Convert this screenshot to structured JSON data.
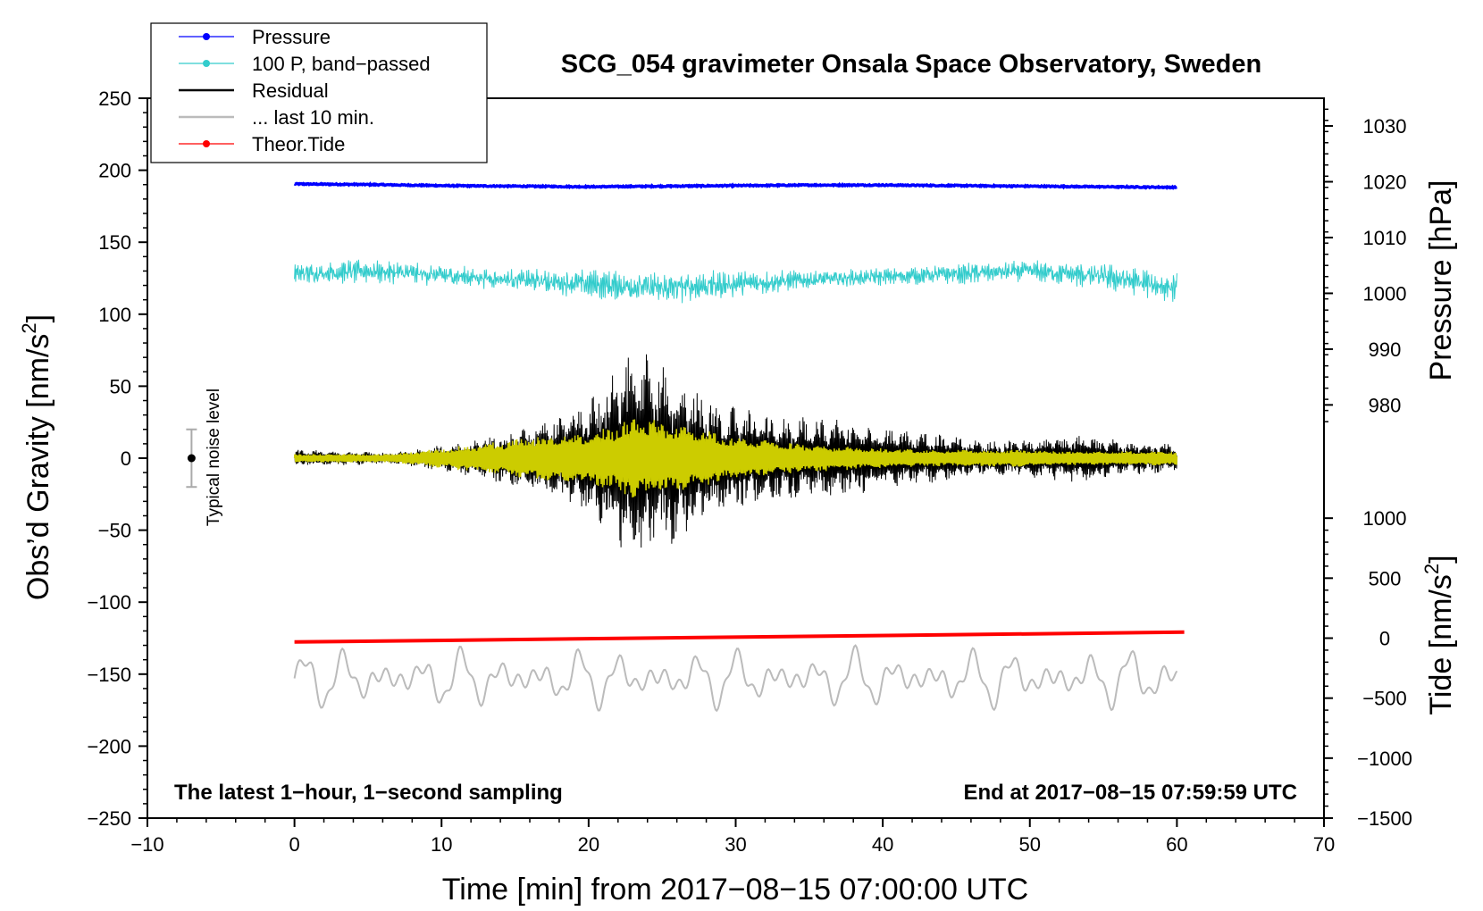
{
  "chart_data": {
    "type": "line",
    "title": "SCG_054 gravimeter Onsala Space Observatory, Sweden",
    "xlabel": "Time [min] from 2017−08−15 07:00:00 UTC",
    "ylabel_left": "Obs’d Gravity [nm/s",
    "ylabel_left_sup": "2",
    "ylabel_left_end": "]",
    "ylabel_pressure": "Pressure [hPa]",
    "ylabel_tide": "Tide [nm/s",
    "ylabel_tide_sup": "2",
    "ylabel_tide_end": "]",
    "xlim": [
      -10,
      70
    ],
    "ylim": [
      -250,
      250
    ],
    "x_ticks": [
      -10,
      0,
      10,
      20,
      30,
      40,
      50,
      60,
      70
    ],
    "x_tick_labels": [
      "−10",
      "0",
      "10",
      "20",
      "30",
      "40",
      "50",
      "60",
      "70"
    ],
    "y_ticks": [
      250,
      200,
      150,
      100,
      50,
      0,
      -50,
      -100,
      -150,
      -200,
      -250
    ],
    "y_tick_labels": [
      "250",
      "200",
      "150",
      "100",
      "50",
      "0",
      "−50",
      "−100",
      "−150",
      "−200",
      "−250"
    ],
    "pressure_axis": {
      "ticks": [
        1030,
        1020,
        1010,
        1000,
        990,
        980
      ],
      "tick_labels": [
        "1030",
        "1020",
        "1010",
        "1000",
        "990",
        "980"
      ],
      "map_to_left": {
        "p1": 1020,
        "y1": 192,
        "p2": 980,
        "y2": 37
      }
    },
    "tide_axis": {
      "ticks": [
        1000,
        500,
        0,
        -500,
        -1000,
        -1500
      ],
      "tick_labels": [
        "1000",
        "500",
        "0",
        "−500",
        "−1000",
        "−1500"
      ],
      "map_to_left": {
        "t1": 0,
        "y1": -125,
        "t2": -1500,
        "y2": -250
      }
    },
    "series": [
      {
        "name": "Pressure",
        "color": "#0000ff",
        "hpa": [
          1019.6,
          1019.5,
          1019.3,
          1019.2,
          1019.1,
          1019.2,
          1019.3,
          1019.4,
          1019.4,
          1019.3,
          1019.2,
          1019.1,
          1019.0
        ]
      },
      {
        "name": "100 P, band−passed",
        "color": "#33cccc",
        "center": [
          128,
          130,
          127,
          124,
          121,
          118,
          121,
          124,
          126,
          128,
          130,
          126,
          118
        ],
        "amplitude": [
          6,
          7,
          6,
          6,
          8,
          9,
          8,
          5,
          5,
          6,
          6,
          8,
          9
        ]
      },
      {
        "name": "Residual",
        "color": "#000000",
        "envelope": [
          6,
          5,
          4,
          9,
          16,
          25,
          40,
          78,
          55,
          35,
          30,
          28,
          22,
          18,
          12,
          14,
          17,
          12,
          10
        ]
      },
      {
        "name": "... last 10 min.",
        "color": "#bbbbbb"
      },
      {
        "name": "Theor.Tide",
        "color": "#ff0000",
        "tide": [
          -32,
          50
        ]
      },
      {
        "name": "filtered",
        "color": "#cccc00",
        "envelope": [
          3,
          3,
          3,
          7,
          11,
          16,
          18,
          30,
          22,
          15,
          11,
          9,
          7,
          6,
          6,
          6,
          5,
          5,
          5
        ]
      }
    ],
    "noise_level": {
      "label": "Typical noise level",
      "x": -7,
      "y": 0,
      "err": 20
    },
    "annotation_left": "The latest 1−hour, 1−second sampling",
    "annotation_right": "End at 2017−08−15 07:59:59 UTC",
    "legend": [
      {
        "label": "Pressure",
        "color": "#0000ff",
        "marker": true
      },
      {
        "label": "100 P, band−passed",
        "color": "#33cccc",
        "marker": true
      },
      {
        "label": "Residual",
        "color": "#000000",
        "marker": false
      },
      {
        "label": "... last 10 min.",
        "color": "#bbbbbb",
        "marker": false
      },
      {
        "label": "Theor.Tide",
        "color": "#ff0000",
        "marker": true
      }
    ]
  }
}
